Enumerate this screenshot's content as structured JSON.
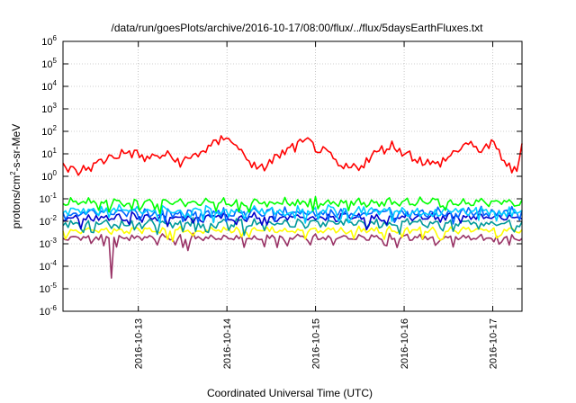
{
  "chart_data": {
    "type": "line",
    "title": "/data/run/goesPlots/archive/2016-10-17/08:00/flux/../flux/5daysEarthFluxes.txt",
    "xlabel": "Coordinated Universal Time (UTC)",
    "ylabel": {
      "pre": "protons/cm",
      "sup": "2",
      "post": "-s-sr-MeV"
    },
    "x_ticks": [
      "2016-10-13",
      "2016-10-14",
      "2016-10-15",
      "2016-10-16",
      "2016-10-17"
    ],
    "y_scale": "log",
    "ylim": [
      1e-06,
      1000000.0
    ],
    "y_ticks": [
      {
        "base": "10",
        "exp": "6"
      },
      {
        "base": "10",
        "exp": "5"
      },
      {
        "base": "10",
        "exp": "4"
      },
      {
        "base": "10",
        "exp": "3"
      },
      {
        "base": "10",
        "exp": "2"
      },
      {
        "base": "10",
        "exp": "1"
      },
      {
        "base": "10",
        "exp": "0"
      },
      {
        "base": "10",
        "exp": "-1"
      },
      {
        "base": "10",
        "exp": "-2"
      },
      {
        "base": "10",
        "exp": "-3"
      },
      {
        "base": "10",
        "exp": "-4"
      },
      {
        "base": "10",
        "exp": "-5"
      },
      {
        "base": "10",
        "exp": "-6"
      }
    ],
    "xlim_days": [
      12.15,
      17.33
    ],
    "grid": true,
    "legend": "none",
    "series": [
      {
        "color": "#ff0000",
        "base": 8,
        "amp": 0.5,
        "keypoints": [
          [
            12.15,
            3
          ],
          [
            12.3,
            1.5
          ],
          [
            12.5,
            3
          ],
          [
            12.7,
            8
          ],
          [
            12.9,
            12
          ],
          [
            13.1,
            6
          ],
          [
            13.3,
            9
          ],
          [
            13.5,
            4
          ],
          [
            13.7,
            12
          ],
          [
            13.9,
            30
          ],
          [
            14.0,
            80
          ],
          [
            14.1,
            20
          ],
          [
            14.25,
            6
          ],
          [
            14.35,
            1.5
          ],
          [
            14.5,
            5
          ],
          [
            14.7,
            15
          ],
          [
            14.9,
            35
          ],
          [
            15.0,
            20
          ],
          [
            15.15,
            8
          ],
          [
            15.3,
            2
          ],
          [
            15.5,
            3
          ],
          [
            15.7,
            12
          ],
          [
            15.85,
            25
          ],
          [
            16.0,
            12
          ],
          [
            16.2,
            5
          ],
          [
            16.35,
            3
          ],
          [
            16.5,
            7
          ],
          [
            16.7,
            30
          ],
          [
            16.8,
            15
          ],
          [
            17.0,
            25
          ],
          [
            17.1,
            8
          ],
          [
            17.2,
            2
          ],
          [
            17.28,
            1.5
          ],
          [
            17.33,
            50
          ]
        ]
      },
      {
        "color": "#00ff00",
        "base": 0.07,
        "amp": 0.25
      },
      {
        "color": "#00ccff",
        "base": 0.03,
        "amp": 0.3
      },
      {
        "color": "#0066ff",
        "base": 0.025,
        "amp": 0.3
      },
      {
        "color": "#0000cc",
        "base": 0.015,
        "amp": 0.25
      },
      {
        "color": "#009999",
        "base": 0.008,
        "amp": 0.25
      },
      {
        "color": "#ffff00",
        "base": 0.004,
        "amp": 0.15
      },
      {
        "color": "#993366",
        "base": 0.0019,
        "amp": 0.15,
        "dips": [
          [
            12.7,
            3e-05
          ],
          [
            13.55,
            0.0005
          ]
        ]
      }
    ]
  }
}
